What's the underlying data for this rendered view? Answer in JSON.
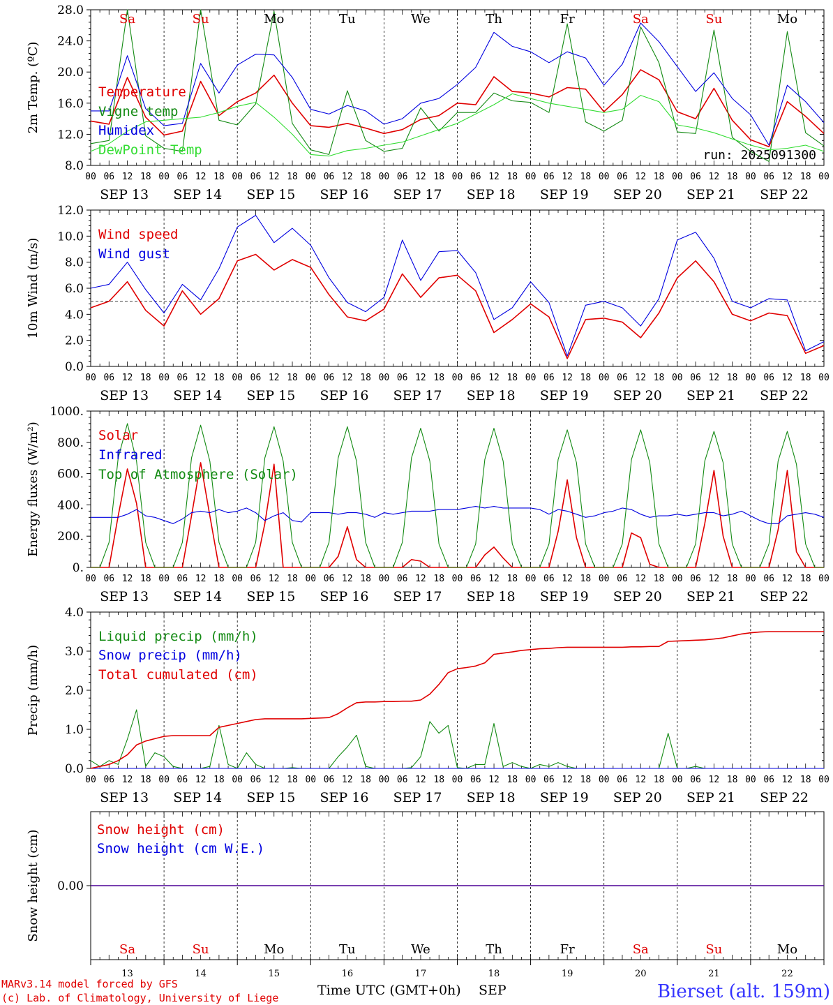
{
  "days": {
    "top_labels": [
      "Sa",
      "Su",
      "Mo",
      "Tu",
      "We",
      "Th",
      "Fr",
      "Sa",
      "Su",
      "Mo"
    ],
    "top_label_colors": [
      "#e00000",
      "#e00000",
      "#000000",
      "#000000",
      "#000000",
      "#000000",
      "#000000",
      "#e00000",
      "#e00000",
      "#000000"
    ],
    "date_labels": [
      "SEP 13",
      "SEP 14",
      "SEP 15",
      "SEP 16",
      "SEP 17",
      "SEP 18",
      "SEP 19",
      "SEP 20",
      "SEP 21",
      "SEP 22"
    ],
    "hour_labels": [
      "00",
      "06",
      "12",
      "18"
    ],
    "hour_label_end": "00",
    "day_numbers": [
      "13",
      "14",
      "15",
      "16",
      "17",
      "18",
      "19",
      "20",
      "21",
      "22"
    ]
  },
  "footer": {
    "line1": "MARv3.14 model forced by GFS",
    "line2": "(c) Lab. of Climatology, University of Liege",
    "x_title": "Time UTC (GMT+0h)",
    "month": "SEP",
    "station": "Bierset (alt. 159m)"
  },
  "colors": {
    "red": "#e00000",
    "green": "#138a13",
    "blue": "#0000e0",
    "lightgreen": "#33dd33"
  },
  "chart_data": [
    {
      "type": "line",
      "ylabel": "2m Temp. (ºC)",
      "ylim": [
        8,
        28
      ],
      "ytick_labels": [
        "8.0",
        "12.0",
        "16.0",
        "20.0",
        "24.0",
        "28.0"
      ],
      "annotation": "run: 2025091300",
      "x_hours": [
        0,
        6,
        12,
        18,
        24,
        30,
        36,
        42,
        48,
        54,
        60,
        66,
        72,
        78,
        84,
        90,
        96,
        102,
        108,
        114,
        120,
        126,
        132,
        138,
        144,
        150,
        156,
        162,
        168,
        174,
        180,
        186,
        192,
        198,
        204,
        210,
        216,
        222,
        228,
        234,
        240
      ],
      "series": [
        {
          "name": "Temperature",
          "color": "red",
          "values": [
            13.7,
            13.3,
            19.3,
            14.2,
            11.9,
            12.4,
            18.8,
            14.4,
            16.2,
            17.3,
            19.6,
            16.0,
            13.1,
            12.9,
            13.4,
            12.8,
            12.1,
            12.6,
            13.9,
            14.4,
            16.0,
            15.8,
            19.4,
            17.5,
            17.3,
            16.8,
            18.0,
            17.8,
            14.9,
            17.1,
            20.3,
            19.0,
            14.9,
            14.0,
            17.9,
            13.8,
            11.3,
            10.4,
            16.2,
            14.3,
            12.1
          ]
        },
        {
          "name": "Vigne temp",
          "color": "green",
          "values": [
            10.8,
            11.2,
            28.0,
            11.8,
            10.2,
            9.8,
            28.0,
            13.8,
            13.2,
            15.9,
            27.8,
            13.4,
            10.0,
            9.4,
            17.6,
            11.2,
            9.8,
            10.2,
            15.4,
            12.4,
            14.8,
            14.8,
            17.3,
            16.3,
            16.1,
            14.8,
            26.2,
            13.6,
            12.4,
            13.8,
            25.8,
            21.2,
            12.3,
            12.1,
            25.4,
            11.6,
            9.8,
            8.5,
            25.2,
            12.2,
            10.5
          ]
        },
        {
          "name": "Humidex",
          "color": "blue",
          "values": [
            15.0,
            15.0,
            22.1,
            15.3,
            13.1,
            13.4,
            21.1,
            17.3,
            20.9,
            22.3,
            22.2,
            19.3,
            15.2,
            14.6,
            15.7,
            15.0,
            13.3,
            14.0,
            16.0,
            16.6,
            18.4,
            20.6,
            25.1,
            23.3,
            22.6,
            21.2,
            22.6,
            21.8,
            18.3,
            21.0,
            26.3,
            23.9,
            20.7,
            17.5,
            19.9,
            16.6,
            14.5,
            10.6,
            18.3,
            16.2,
            13.5
          ]
        },
        {
          "name": "DewPoint Temp",
          "color": "lightgreen",
          "values": [
            9.8,
            10.8,
            12.4,
            13.6,
            13.8,
            14.0,
            14.2,
            14.8,
            15.6,
            16.1,
            14.2,
            12.0,
            9.4,
            9.2,
            9.9,
            10.2,
            10.6,
            11.0,
            11.8,
            12.6,
            13.4,
            14.6,
            15.8,
            17.2,
            16.6,
            16.0,
            15.6,
            15.2,
            14.8,
            15.2,
            17.0,
            16.2,
            13.2,
            12.8,
            12.2,
            11.4,
            10.6,
            10.0,
            10.2,
            10.6,
            9.8
          ]
        }
      ]
    },
    {
      "type": "line",
      "ylabel": "10m Wind (m/s)",
      "ylim": [
        0,
        12
      ],
      "ytick_labels": [
        "0.0",
        "2.0",
        "4.0",
        "6.0",
        "8.0",
        "10.0",
        "12.0"
      ],
      "reference_line": 5,
      "x_hours": [
        0,
        6,
        12,
        18,
        24,
        30,
        36,
        42,
        48,
        54,
        60,
        66,
        72,
        78,
        84,
        90,
        96,
        102,
        108,
        114,
        120,
        126,
        132,
        138,
        144,
        150,
        156,
        162,
        168,
        174,
        180,
        186,
        192,
        198,
        204,
        210,
        216,
        222,
        228,
        234,
        240
      ],
      "series": [
        {
          "name": "Wind speed",
          "color": "red",
          "values": [
            4.5,
            5.0,
            6.5,
            4.3,
            3.1,
            5.8,
            4.0,
            5.2,
            8.1,
            8.6,
            7.4,
            8.2,
            7.6,
            5.5,
            3.8,
            3.5,
            4.4,
            7.1,
            5.3,
            6.8,
            7.0,
            5.8,
            2.6,
            3.6,
            4.8,
            3.8,
            0.6,
            3.6,
            3.7,
            3.4,
            2.2,
            4.1,
            6.8,
            8.1,
            6.5,
            4.0,
            3.5,
            4.1,
            3.9,
            1.0,
            1.6
          ]
        },
        {
          "name": "Wind gust",
          "color": "blue",
          "values": [
            6.0,
            6.3,
            8.0,
            5.9,
            4.1,
            6.3,
            5.1,
            7.5,
            10.7,
            11.6,
            9.5,
            10.6,
            9.3,
            6.8,
            4.9,
            4.2,
            5.3,
            9.7,
            6.6,
            8.8,
            8.9,
            7.2,
            3.6,
            4.5,
            6.5,
            4.9,
            0.8,
            4.7,
            5.0,
            4.5,
            3.1,
            5.2,
            9.7,
            10.3,
            8.3,
            5.0,
            4.5,
            5.2,
            5.1,
            1.2,
            1.9
          ]
        }
      ]
    },
    {
      "type": "line",
      "ylabel": "Energy fluxes (W/m²)",
      "ylim": [
        0,
        1000
      ],
      "ytick_labels": [
        "0.",
        "200.",
        "400.",
        "600.",
        "800.",
        "1000."
      ],
      "x_hours": [
        0,
        3,
        6,
        9,
        12,
        15,
        18,
        21,
        24,
        27,
        30,
        33,
        36,
        39,
        42,
        45,
        48,
        51,
        54,
        57,
        60,
        63,
        66,
        69,
        72,
        75,
        78,
        81,
        84,
        87,
        90,
        93,
        96,
        99,
        102,
        105,
        108,
        111,
        114,
        117,
        120,
        123,
        126,
        129,
        132,
        135,
        138,
        141,
        144,
        147,
        150,
        153,
        156,
        159,
        162,
        165,
        168,
        171,
        174,
        177,
        180,
        183,
        186,
        189,
        192,
        195,
        198,
        201,
        204,
        207,
        210,
        213,
        216,
        219,
        222,
        225,
        228,
        231,
        234,
        237,
        240
      ],
      "series": [
        {
          "name": "Solar",
          "color": "red",
          "values": [
            0,
            0,
            0,
            330,
            630,
            410,
            0,
            0,
            0,
            0,
            0,
            330,
            670,
            330,
            0,
            0,
            0,
            0,
            0,
            280,
            660,
            0,
            0,
            0,
            0,
            0,
            0,
            70,
            260,
            50,
            0,
            0,
            0,
            0,
            0,
            50,
            40,
            0,
            0,
            0,
            0,
            0,
            0,
            80,
            130,
            60,
            0,
            0,
            0,
            0,
            0,
            230,
            560,
            190,
            0,
            0,
            0,
            0,
            0,
            220,
            190,
            20,
            0,
            0,
            0,
            0,
            0,
            280,
            620,
            200,
            0,
            0,
            0,
            0,
            0,
            240,
            620,
            100,
            0,
            0,
            0
          ]
        },
        {
          "name": "Infrared",
          "color": "blue",
          "values": [
            320,
            320,
            320,
            320,
            340,
            370,
            330,
            320,
            300,
            280,
            310,
            350,
            360,
            350,
            370,
            350,
            360,
            380,
            350,
            300,
            330,
            350,
            300,
            290,
            350,
            350,
            350,
            340,
            350,
            350,
            340,
            320,
            350,
            340,
            350,
            360,
            360,
            360,
            370,
            370,
            370,
            380,
            390,
            380,
            390,
            380,
            380,
            380,
            380,
            370,
            340,
            370,
            360,
            340,
            320,
            330,
            350,
            360,
            380,
            370,
            340,
            320,
            330,
            330,
            340,
            330,
            340,
            350,
            350,
            330,
            340,
            360,
            330,
            300,
            280,
            280,
            330,
            340,
            350,
            340,
            320
          ]
        },
        {
          "name": "Top of Atmosphere (Solar)",
          "color": "green",
          "values": [
            0,
            0,
            160,
            700,
            920,
            680,
            160,
            0,
            0,
            0,
            160,
            700,
            910,
            680,
            160,
            0,
            0,
            0,
            160,
            700,
            900,
            680,
            160,
            0,
            0,
            0,
            160,
            700,
            900,
            680,
            160,
            0,
            0,
            0,
            160,
            700,
            890,
            680,
            150,
            0,
            0,
            0,
            150,
            690,
            890,
            680,
            150,
            0,
            0,
            0,
            150,
            690,
            880,
            670,
            150,
            0,
            0,
            0,
            150,
            690,
            880,
            670,
            150,
            0,
            0,
            0,
            150,
            680,
            870,
            670,
            150,
            0,
            0,
            0,
            150,
            680,
            870,
            660,
            150,
            0,
            0
          ]
        }
      ]
    },
    {
      "type": "line",
      "ylabel": "Precip (mm/h)",
      "ylim": [
        0,
        4
      ],
      "ytick_labels": [
        "0.0",
        "1.0",
        "2.0",
        "3.0",
        "4.0"
      ],
      "x_hours": [
        0,
        3,
        6,
        9,
        12,
        15,
        18,
        21,
        24,
        27,
        30,
        33,
        36,
        39,
        42,
        45,
        48,
        51,
        54,
        57,
        60,
        63,
        66,
        69,
        72,
        75,
        78,
        81,
        84,
        87,
        90,
        93,
        96,
        99,
        102,
        105,
        108,
        111,
        114,
        117,
        120,
        123,
        126,
        129,
        132,
        135,
        138,
        141,
        144,
        147,
        150,
        153,
        156,
        159,
        162,
        165,
        168,
        171,
        174,
        177,
        180,
        183,
        186,
        189,
        192,
        195,
        198,
        201,
        204,
        207,
        210,
        213,
        216,
        219,
        222,
        225,
        228,
        231,
        234,
        237,
        240
      ],
      "series": [
        {
          "name": "Liquid precip (mm/h)",
          "color": "green",
          "values": [
            0.2,
            0.05,
            0.2,
            0.1,
            0.75,
            1.5,
            0.05,
            0.4,
            0.3,
            0.05,
            0.0,
            0.0,
            0.0,
            0.05,
            1.1,
            0.1,
            0.0,
            0.4,
            0.1,
            0.0,
            0.0,
            0.0,
            0.02,
            0.0,
            0.0,
            0.0,
            0.0,
            0.3,
            0.55,
            0.85,
            0.05,
            0.0,
            0.0,
            0.0,
            0.0,
            0.02,
            0.3,
            1.2,
            0.9,
            1.1,
            0.02,
            0.0,
            0.1,
            0.1,
            1.15,
            0.05,
            0.15,
            0.05,
            0.0,
            0.1,
            0.05,
            0.15,
            0.05,
            0.0,
            0.0,
            0.0,
            0.0,
            0.0,
            0.0,
            0.0,
            0.0,
            0.0,
            0.0,
            0.9,
            0.0,
            0.0,
            0.05,
            0.0,
            0.0,
            0.0,
            0.0,
            0.0,
            0.0,
            0.0,
            0.0,
            0.0,
            0.0,
            0.0,
            0.0,
            0.0,
            0.0
          ]
        },
        {
          "name": "Snow precip (mm/h)",
          "color": "blue",
          "values": [
            0,
            0,
            0,
            0,
            0,
            0,
            0,
            0,
            0,
            0,
            0,
            0,
            0,
            0,
            0,
            0,
            0,
            0,
            0,
            0,
            0,
            0,
            0,
            0,
            0,
            0,
            0,
            0,
            0,
            0,
            0,
            0,
            0,
            0,
            0,
            0,
            0,
            0,
            0,
            0,
            0,
            0,
            0,
            0,
            0,
            0,
            0,
            0,
            0,
            0,
            0,
            0,
            0,
            0,
            0,
            0,
            0,
            0,
            0,
            0,
            0,
            0,
            0,
            0,
            0,
            0,
            0,
            0,
            0,
            0,
            0,
            0,
            0,
            0,
            0,
            0,
            0,
            0,
            0,
            0,
            0
          ]
        },
        {
          "name": "Total cumulated (cm)",
          "color": "red",
          "values": [
            0.0,
            0.05,
            0.1,
            0.2,
            0.35,
            0.6,
            0.7,
            0.76,
            0.82,
            0.84,
            0.84,
            0.84,
            0.84,
            0.84,
            1.05,
            1.1,
            1.15,
            1.2,
            1.25,
            1.27,
            1.27,
            1.27,
            1.27,
            1.27,
            1.28,
            1.29,
            1.3,
            1.4,
            1.55,
            1.68,
            1.7,
            1.7,
            1.71,
            1.71,
            1.72,
            1.72,
            1.75,
            1.9,
            2.15,
            2.45,
            2.55,
            2.58,
            2.62,
            2.7,
            2.92,
            2.95,
            2.98,
            3.02,
            3.04,
            3.06,
            3.07,
            3.09,
            3.1,
            3.1,
            3.1,
            3.1,
            3.1,
            3.1,
            3.1,
            3.11,
            3.11,
            3.12,
            3.12,
            3.25,
            3.26,
            3.27,
            3.28,
            3.29,
            3.31,
            3.34,
            3.39,
            3.44,
            3.47,
            3.49,
            3.5,
            3.5,
            3.5,
            3.5,
            3.5,
            3.5,
            3.5
          ]
        }
      ]
    },
    {
      "type": "line",
      "ylabel": "Snow height (cm)",
      "ytick_labels": [
        "0.00"
      ],
      "x_hours": [
        0,
        240
      ],
      "series": [
        {
          "name": "Snow height (cm)",
          "color": "red",
          "values": [
            0,
            0
          ]
        },
        {
          "name": "Snow height (cm W.E.)",
          "color": "blue",
          "values": [
            0,
            0
          ]
        }
      ]
    }
  ]
}
